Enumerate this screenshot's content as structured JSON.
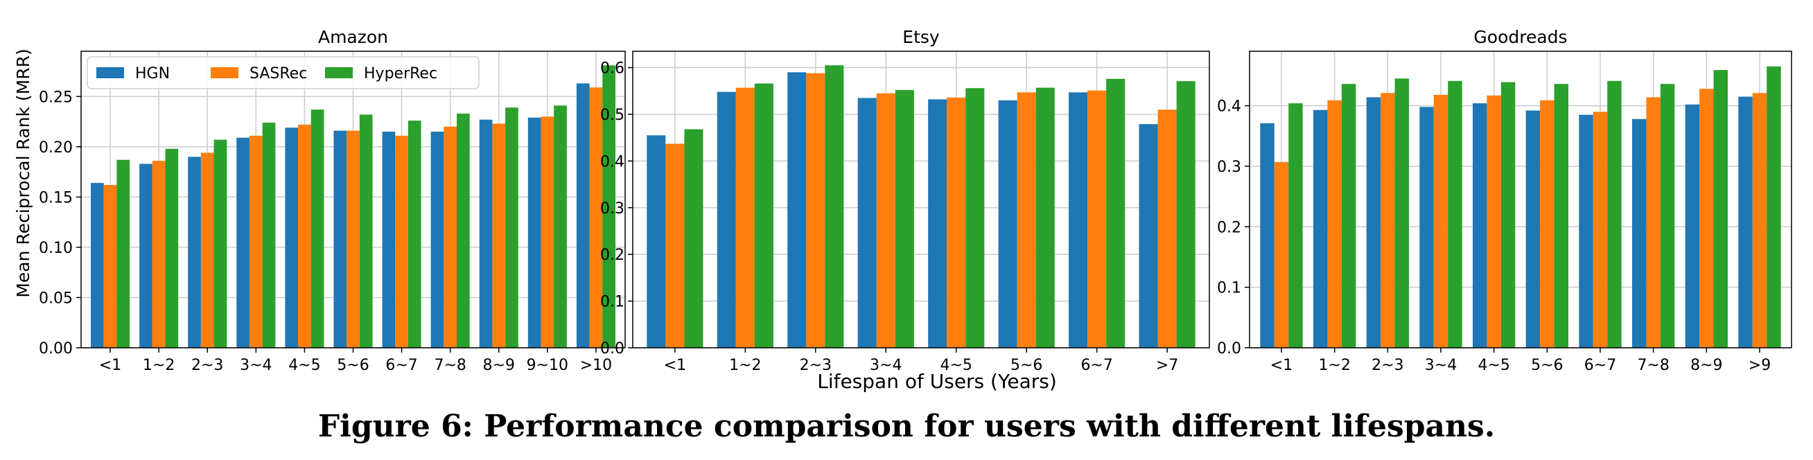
{
  "colors": {
    "HGN": "#1f77b4",
    "SASRec": "#ff7f0e",
    "HyperRec": "#2ca02c",
    "grid": "#cccccc"
  },
  "ylabel": "Mean Reciprocal Rank (MRR)",
  "xlabel": "Lifespan of Users (Years)",
  "caption": "Figure 6: Performance comparison for users with different lifespans.",
  "legend": [
    "HGN",
    "SASRec",
    "HyperRec"
  ],
  "chart_data": [
    {
      "type": "bar",
      "title": "Amazon",
      "categories": [
        "<1",
        "1~2",
        "2~3",
        "3~4",
        "4~5",
        "5~6",
        "6~7",
        "7~8",
        "8~9",
        "9~10",
        ">10"
      ],
      "series": [
        {
          "name": "HGN",
          "values": [
            0.164,
            0.183,
            0.19,
            0.209,
            0.219,
            0.216,
            0.215,
            0.215,
            0.227,
            0.229,
            0.263
          ]
        },
        {
          "name": "SASRec",
          "values": [
            0.162,
            0.186,
            0.194,
            0.211,
            0.222,
            0.216,
            0.211,
            0.22,
            0.223,
            0.23,
            0.259
          ]
        },
        {
          "name": "HyperRec",
          "values": [
            0.187,
            0.198,
            0.207,
            0.224,
            0.237,
            0.232,
            0.226,
            0.233,
            0.239,
            0.241,
            0.281
          ]
        }
      ],
      "ylim": [
        0,
        0.295
      ],
      "yticks": [
        0.0,
        0.05,
        0.1,
        0.15,
        0.2,
        0.25
      ],
      "ytick_labels": [
        "0.00",
        "0.05",
        "0.10",
        "0.15",
        "0.20",
        "0.25"
      ],
      "legend": "top-left"
    },
    {
      "type": "bar",
      "title": "Etsy",
      "categories": [
        "<1",
        "1~2",
        "2~3",
        "3~4",
        "4~5",
        "5~6",
        "6~7",
        ">7"
      ],
      "series": [
        {
          "name": "HGN",
          "values": [
            0.455,
            0.548,
            0.59,
            0.535,
            0.532,
            0.53,
            0.547,
            0.479
          ]
        },
        {
          "name": "SASRec",
          "values": [
            0.437,
            0.557,
            0.588,
            0.545,
            0.536,
            0.547,
            0.551,
            0.51
          ]
        },
        {
          "name": "HyperRec",
          "values": [
            0.468,
            0.566,
            0.605,
            0.552,
            0.556,
            0.557,
            0.576,
            0.571
          ]
        }
      ],
      "ylim": [
        0,
        0.635
      ],
      "yticks": [
        0.0,
        0.1,
        0.2,
        0.3,
        0.4,
        0.5,
        0.6
      ],
      "ytick_labels": [
        "0.0",
        "0.1",
        "0.2",
        "0.3",
        "0.4",
        "0.5",
        "0.6"
      ]
    },
    {
      "type": "bar",
      "title": "Goodreads",
      "categories": [
        "<1",
        "1~2",
        "2~3",
        "3~4",
        "4~5",
        "5~6",
        "6~7",
        "7~8",
        "8~9",
        ">9"
      ],
      "series": [
        {
          "name": "HGN",
          "values": [
            0.371,
            0.393,
            0.414,
            0.398,
            0.404,
            0.392,
            0.385,
            0.378,
            0.402,
            0.415
          ]
        },
        {
          "name": "SASRec",
          "values": [
            0.307,
            0.409,
            0.421,
            0.418,
            0.417,
            0.409,
            0.39,
            0.414,
            0.428,
            0.421
          ]
        },
        {
          "name": "HyperRec",
          "values": [
            0.404,
            0.436,
            0.445,
            0.441,
            0.439,
            0.436,
            0.441,
            0.436,
            0.459,
            0.465
          ]
        }
      ],
      "ylim": [
        0,
        0.49
      ],
      "yticks": [
        0.0,
        0.1,
        0.2,
        0.3,
        0.4
      ],
      "ytick_labels": [
        "0.0",
        "0.1",
        "0.2",
        "0.3",
        "0.4"
      ]
    }
  ]
}
